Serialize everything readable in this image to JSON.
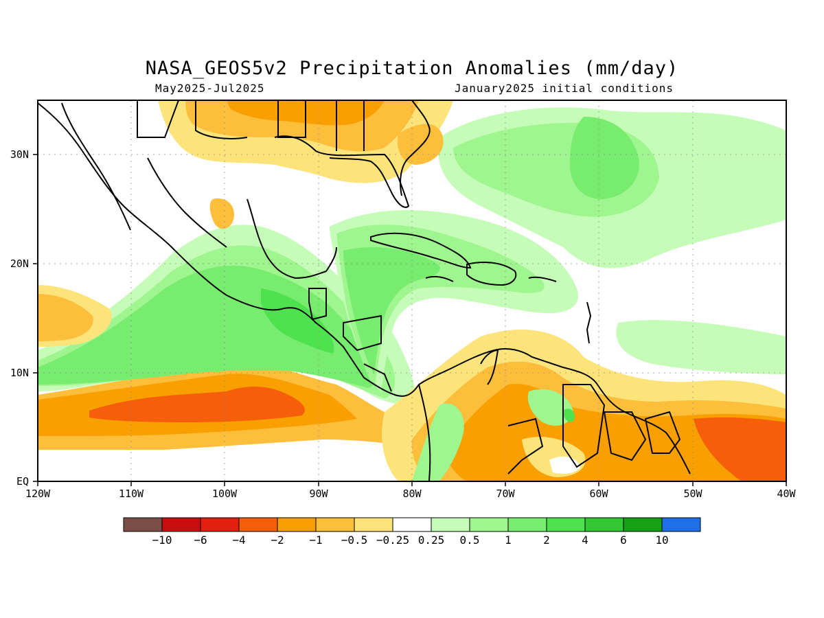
{
  "header": {
    "title": "NASA_GEOS5v2 Precipitation Anomalies (mm/day)",
    "period": "May2025-Jul2025",
    "init": "January2025 initial conditions"
  },
  "axes": {
    "x_labels": [
      "120W",
      "110W",
      "100W",
      "90W",
      "80W",
      "70W",
      "60W",
      "50W",
      "40W"
    ],
    "y_labels": [
      "EQ",
      "10N",
      "20N",
      "30N"
    ],
    "lon_range": [
      -120,
      -40
    ],
    "lat_range": [
      0,
      35
    ]
  },
  "colorbar": {
    "colors": [
      "#7b4f45",
      "#c80e0e",
      "#e3200e",
      "#f55f0a",
      "#fa9f00",
      "#fdbe3b",
      "#fde47a",
      "#ffffff",
      "#c5fdb8",
      "#9ff58e",
      "#77ec6e",
      "#4ee24e",
      "#33c833",
      "#15a015",
      "#1f6fe8"
    ],
    "labels": [
      "-10",
      "-6",
      "-4",
      "-2",
      "-1",
      "-0.5",
      "-0.25",
      "0.25",
      "0.5",
      "1",
      "2",
      "4",
      "6",
      "10"
    ]
  }
}
